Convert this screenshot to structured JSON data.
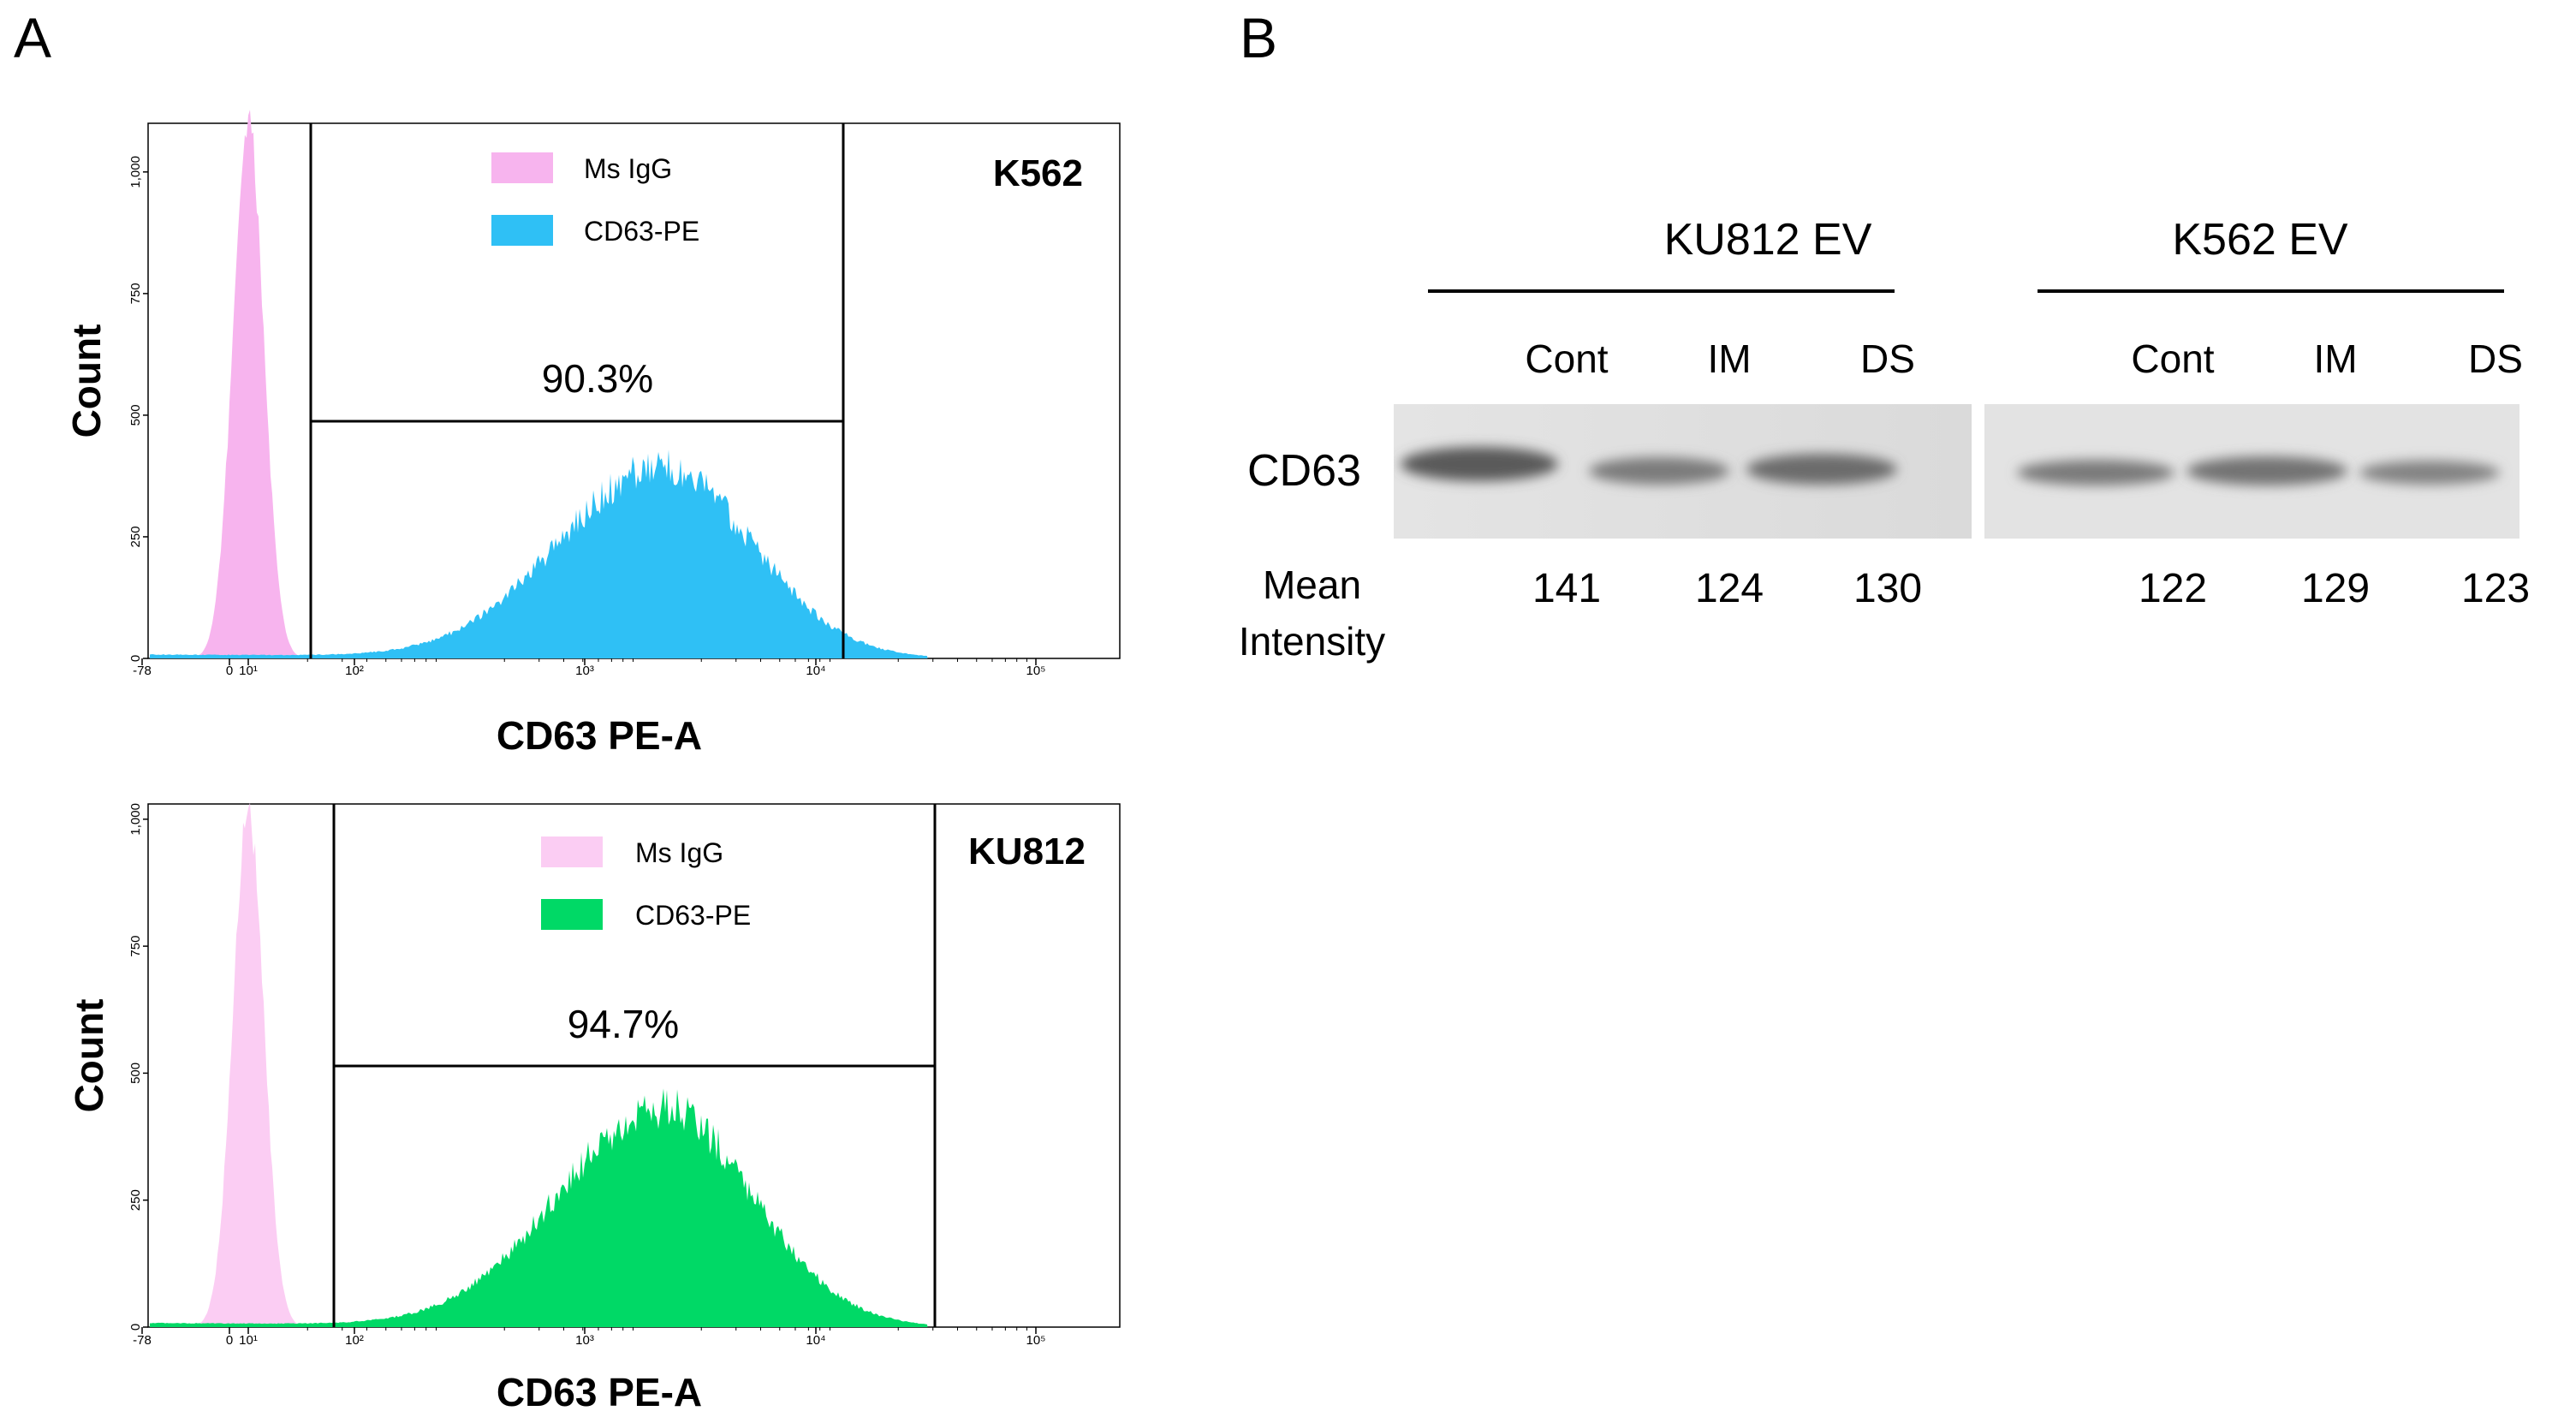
{
  "panel_a_label": "A",
  "panel_b_label": "B",
  "chart_data": [
    {
      "type": "area",
      "title": "K562",
      "xlabel": "CD63 PE-A",
      "ylabel": "Count",
      "ylim": [
        0,
        1100
      ],
      "xscale": "biexponential",
      "x_tick_labels": [
        "-78",
        "0",
        "10¹",
        "10²",
        "10³",
        "10⁴",
        "10⁵"
      ],
      "y_tick_labels": [
        "0",
        "250",
        "500",
        "750",
        "1,000"
      ],
      "y_tick_values": [
        0,
        250,
        500,
        750,
        1000
      ],
      "gate_percent": "90.3%",
      "legend": [
        "Ms IgG",
        "CD63-PE"
      ],
      "colors": {
        "isotype": "#f7b4ee",
        "stained": "#2fc0f5"
      },
      "series": [
        {
          "name": "Ms IgG",
          "peak_x_log": 1.0,
          "peak_count": 1100
        },
        {
          "name": "CD63-PE",
          "peak_x_log": 3.1,
          "peak_count": 390
        }
      ]
    },
    {
      "type": "area",
      "title": "KU812",
      "xlabel": "CD63 PE-A",
      "ylabel": "Count",
      "ylim": [
        0,
        1030
      ],
      "xscale": "biexponential",
      "x_tick_labels": [
        "-78",
        "0",
        "10¹",
        "10²",
        "10³",
        "10⁴",
        "10⁵"
      ],
      "y_tick_labels": [
        "0",
        "250",
        "500",
        "750",
        "1,000"
      ],
      "y_tick_values": [
        0,
        250,
        500,
        750,
        1000
      ],
      "gate_percent": "94.7%",
      "legend": [
        "Ms IgG",
        "CD63-PE"
      ],
      "colors": {
        "isotype": "#fbcdf3",
        "stained": "#00d966"
      },
      "series": [
        {
          "name": "Ms IgG",
          "peak_x_log": 1.0,
          "peak_count": 1020
        },
        {
          "name": "CD63-PE",
          "peak_x_log": 3.1,
          "peak_count": 430
        }
      ]
    },
    {
      "type": "table",
      "title": "Western blot CD63",
      "groups": [
        "KU812 EV",
        "K562 EV"
      ],
      "lanes": [
        "Cont",
        "IM",
        "DS",
        "Cont",
        "IM",
        "DS"
      ],
      "row_label": "CD63",
      "mean_label": "Mean",
      "intensity_label": "Intensity",
      "mean_intensity": [
        "141",
        "124",
        "130",
        "122",
        "129",
        "123"
      ]
    }
  ]
}
